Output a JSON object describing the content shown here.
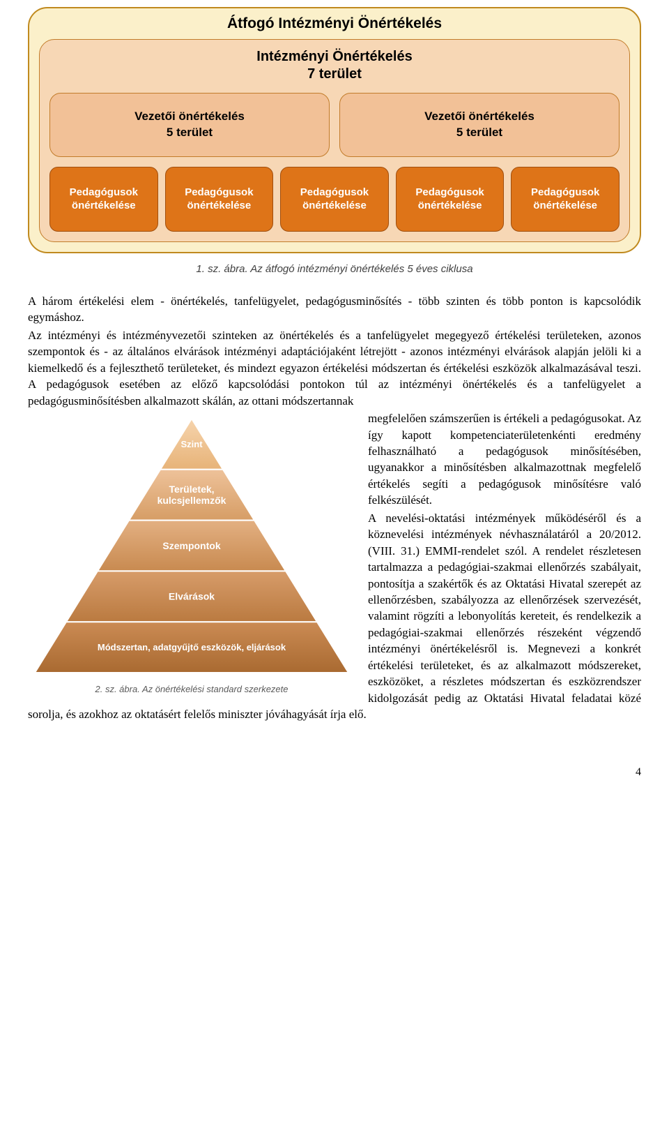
{
  "diagram1": {
    "outer": {
      "title": "Átfogó Intézményi Önértékelés",
      "bg": "#fbf0ca",
      "border": "#c08a1f"
    },
    "inner": {
      "title": "Intézményi Önértékelés\n7 terület",
      "bg": "#f7d7b5",
      "border": "#c27c2a"
    },
    "mid": {
      "bg": "#f2c197",
      "border": "#c27c2a",
      "boxes": [
        {
          "line1": "Vezetői önértékelés",
          "line2": "5 terület"
        },
        {
          "line1": "Vezetői önértékelés",
          "line2": "5 terület"
        }
      ]
    },
    "bottom": {
      "bg": "#de7418",
      "border": "#a04e0d",
      "text_color": "#ffffff",
      "boxes": [
        {
          "line1": "Pedagógusok",
          "line2": "önértékelése"
        },
        {
          "line1": "Pedagógusok",
          "line2": "önértékelése"
        },
        {
          "line1": "Pedagógusok",
          "line2": "önértékelése"
        },
        {
          "line1": "Pedagógusok",
          "line2": "önértékelése"
        },
        {
          "line1": "Pedagógusok",
          "line2": "önértékelése"
        }
      ]
    },
    "caption": "1. sz. ábra. Az átfogó intézményi önértékelés 5 éves ciklusa"
  },
  "text": {
    "p1": "A három értékelési elem - önértékelés, tanfelügyelet, pedagógusminősítés - több szinten és több ponton is kapcsolódik egymáshoz.",
    "p2": "Az intézményi és intézményvezetői szinteken az önértékelés és a tanfelügyelet megegyező értékelési területeken, azonos szempontok és - az általános elvárások intézményi adaptációjaként létrejött - azonos intézményi elvárások alapján jelöli ki a kiemelkedő és a fejleszthető területeket, és mindezt egyazon értékelési módszertan és értékelési eszközök alkalmazásával teszi. A pedagógusok esetében az előző kapcsolódási pontokon túl az intézményi önértékelés és a tanfelügyelet a pedagógusminősítésben alkalmazott skálán, az ottani módszertannak megfelelően számszerűen is értékeli a pedagógusokat. Az így kapott kompetenciaterületenkénti eredmény felhasználható a pedagógusok minősítésében, ugyanakkor a minősítésben alkalmazottnak megfelelő értékelés segíti a pedagógusok minősítésre való felkészülését.",
    "p3": "A nevelési-oktatási intézmények működéséről és a köznevelési intézmények névhasználatáról a 20/2012. (VIII. 31.) EMMI-rendelet szól. A rendelet részletesen tartalmazza a pedagógiai-szakmai ellenőrzés szabályait, pontosítja a szakértők és az Oktatási Hivatal szerepét az ellenőrzésben, szabályozza az ellenőrzések szervezését, valamint rögzíti a lebonyolítás kereteit, és rendelkezik a pedagógiai-szakmai ellenőrzés részeként végzendő intézményi önértékelésről is. Megnevezi a konkrét értékelési területeket, és az alkalmazott módszereket, eszközöket, a részletes módszertan és eszközrendszer kidolgozását pedig az Oktatási Hivatal feladatai közé sorolja, és azokhoz az oktatásért felelős miniszter jóváhagyását írja elő."
  },
  "pyramid": {
    "levels": [
      {
        "label": "Szint",
        "fill_top": "#f6d4ad",
        "fill_bottom": "#e7b378"
      },
      {
        "label": "Területek,\nkulcsjellemzők",
        "fill_top": "#eec29a",
        "fill_bottom": "#d69d65"
      },
      {
        "label": "Szempontok",
        "fill_top": "#e3b082",
        "fill_bottom": "#c88a50"
      },
      {
        "label": "Elvárások",
        "fill_top": "#d79c6a",
        "fill_bottom": "#ba7a40"
      },
      {
        "label": "Módszertan, adatgyűjtő eszközök, eljárások",
        "fill_top": "#cb8b54",
        "fill_bottom": "#a96a31"
      }
    ],
    "text_color": "#ffffff",
    "stroke": "#ffffff",
    "caption": "2. sz. ábra. Az önértékelési standard szerkezete"
  },
  "page_number": "4"
}
